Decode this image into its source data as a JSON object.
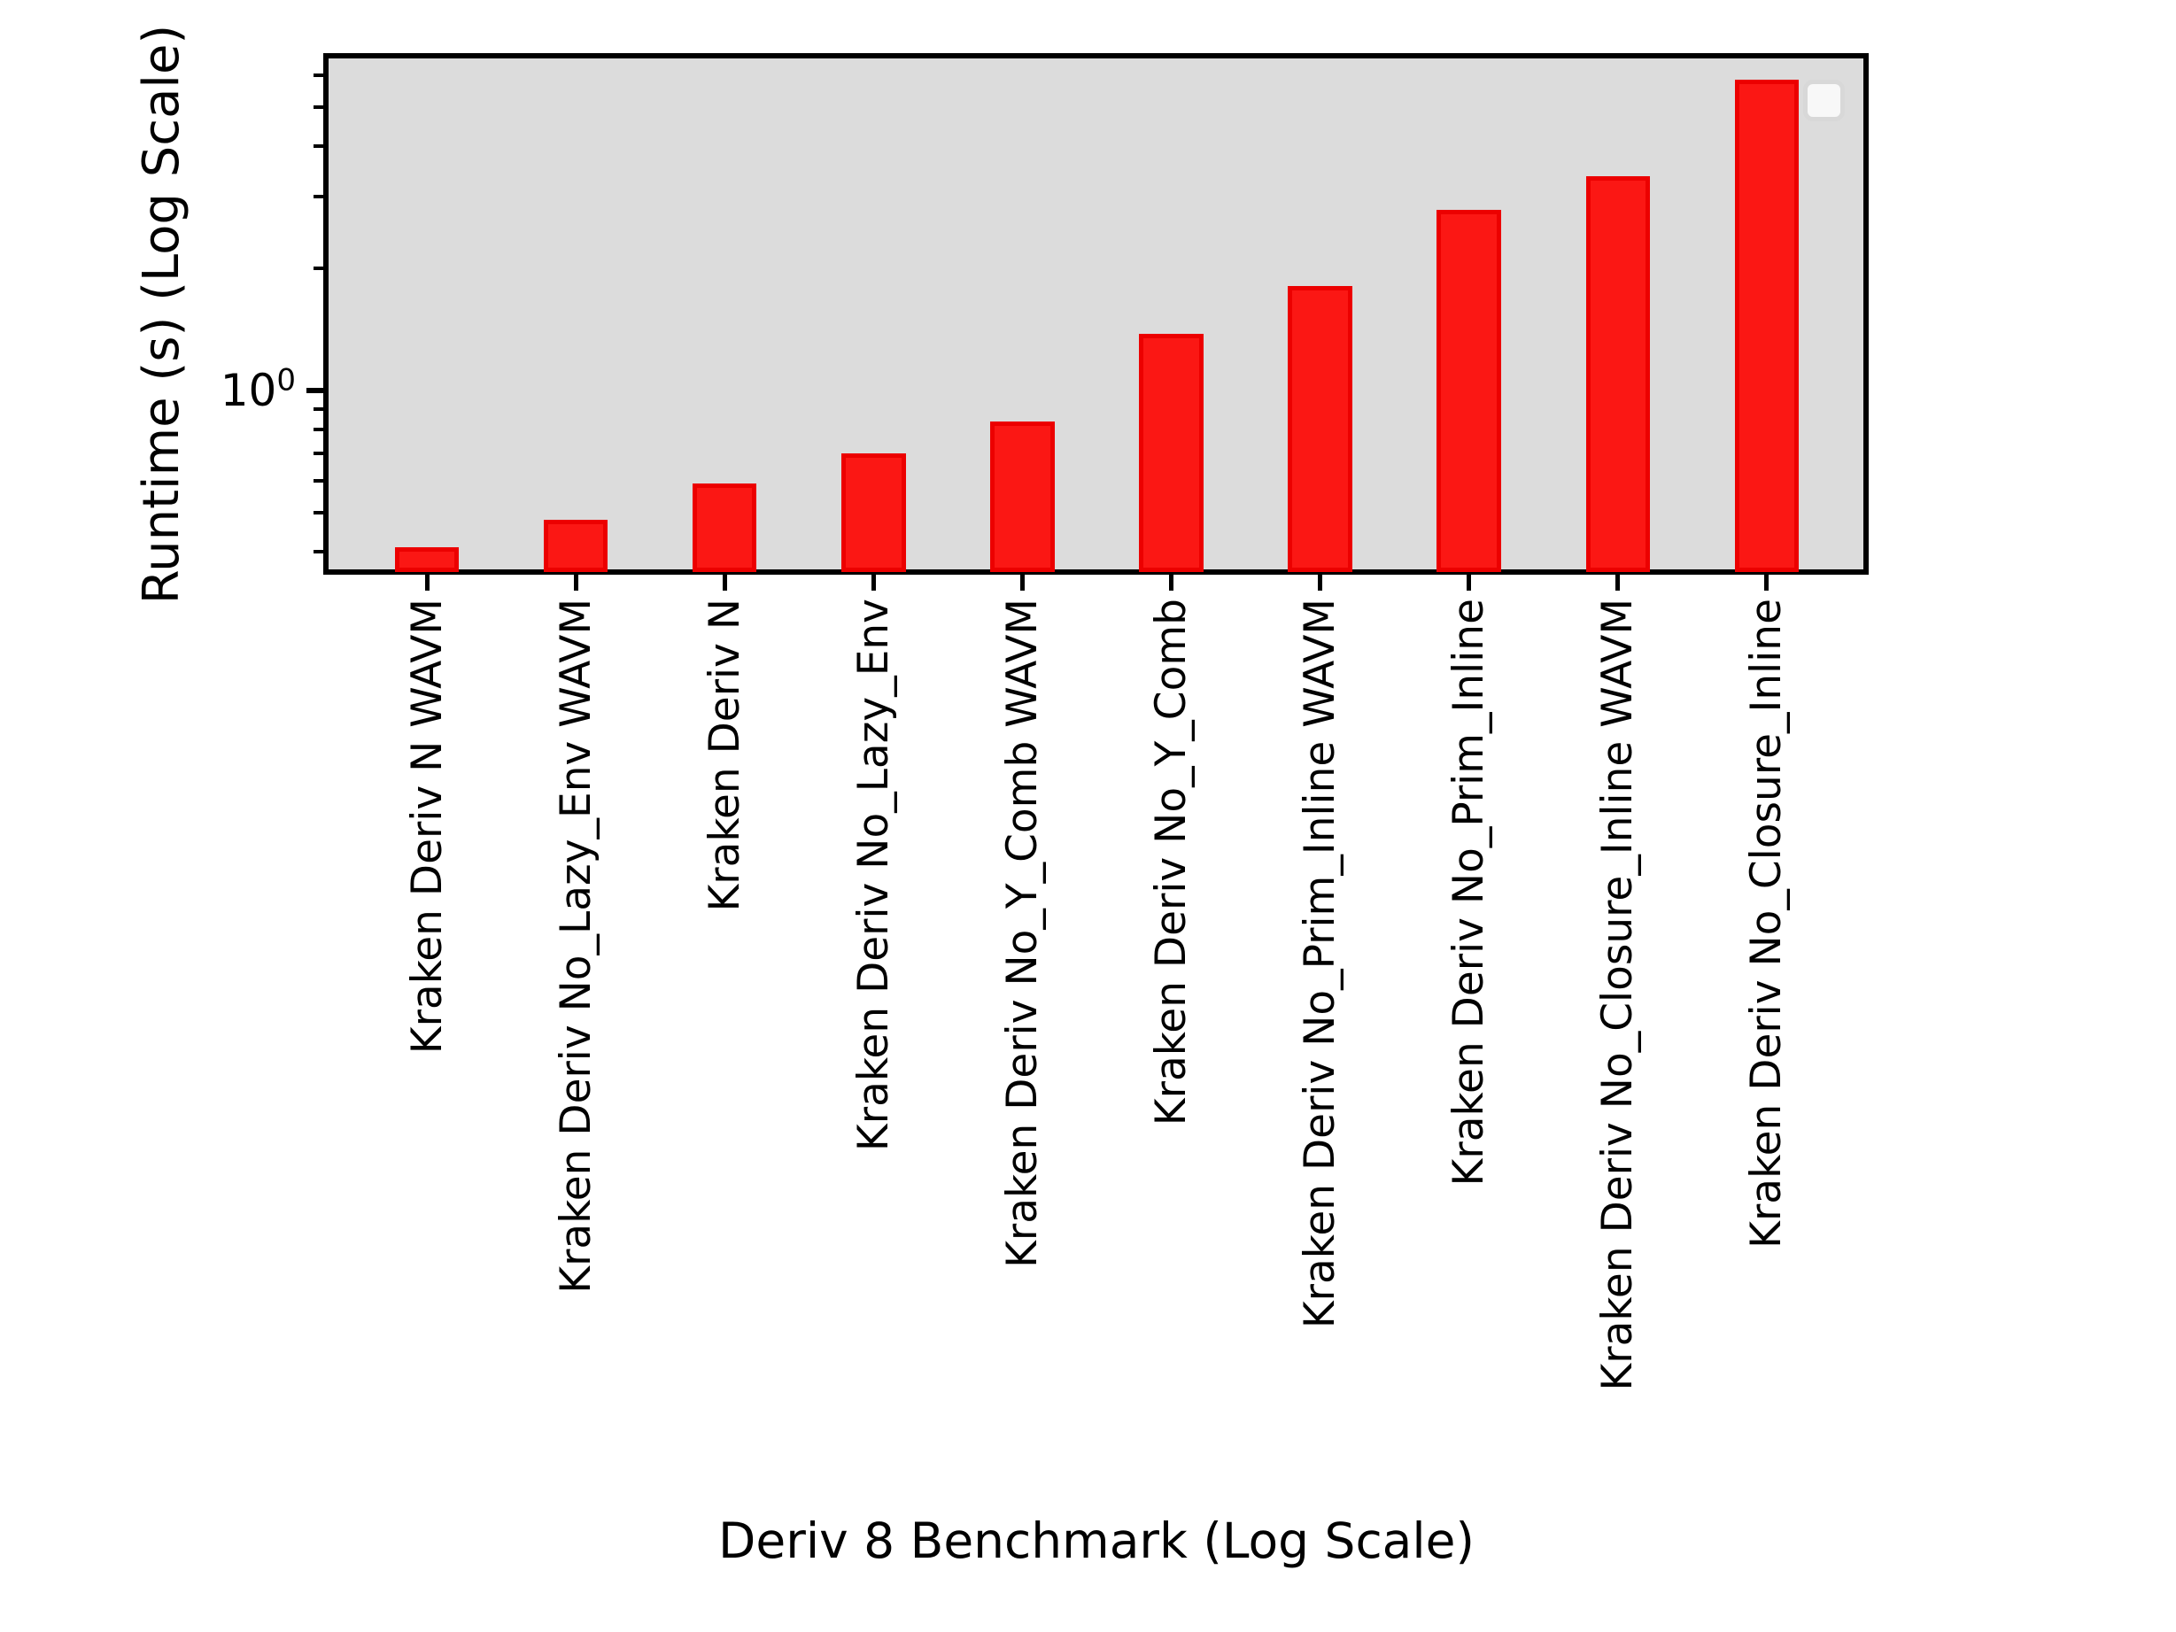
{
  "chart": {
    "y_tick": {
      "base": "10",
      "exp": "0"
    }
  },
  "chart_data": {
    "type": "bar",
    "title": "",
    "yscale": "log",
    "xlabel": "Deriv 8 Benchmark (Log Scale)",
    "ylabel": "Runtime (s) (Log Scale)",
    "categories": [
      "Kraken Deriv N WAVM",
      "Kraken Deriv No_Lazy_Env WAVM",
      "Kraken Deriv N",
      "Kraken Deriv No_Lazy_Env",
      "Kraken Deriv No_Y_Comb WAVM",
      "Kraken Deriv No_Y_Comb",
      "Kraken Deriv No_Prim_Inline WAVM",
      "Kraken Deriv No_Prim_Inline",
      "Kraken Deriv No_Closure_Inline WAVM",
      "Kraken Deriv No_Closure_Inline"
    ],
    "values": [
      0.41,
      0.48,
      0.59,
      0.7,
      0.84,
      1.38,
      1.81,
      2.79,
      3.37,
      5.84
    ],
    "ylim": [
      0.36,
      6.65
    ],
    "y_major_ticks": [
      1
    ],
    "y_minor_ticks": [
      0.4,
      0.5,
      0.6,
      0.7,
      0.8,
      0.9,
      2,
      3,
      4,
      5,
      6
    ],
    "grid": false,
    "legend": {
      "present": true,
      "position": "upper right",
      "entries": []
    },
    "bar_color": "#fb1714",
    "bar_edge_color": "#ec0000",
    "plot_bg": "#dcdcdc",
    "axis_color": "#000000"
  }
}
